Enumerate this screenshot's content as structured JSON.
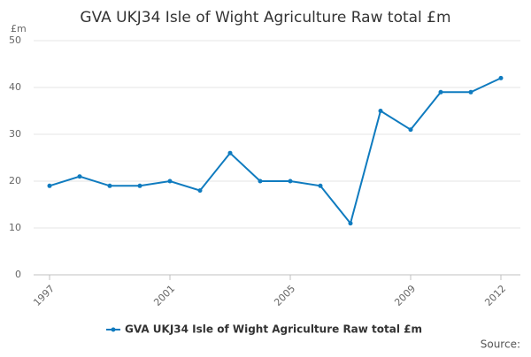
{
  "chart_data": {
    "type": "line",
    "title": "GVA UKJ34 Isle of Wight Agriculture Raw total £m",
    "y_label": "£m",
    "source": "Source:",
    "x": [
      1997,
      1998,
      1999,
      2000,
      2001,
      2002,
      2003,
      2004,
      2005,
      2006,
      2007,
      2008,
      2009,
      2010,
      2011,
      2012
    ],
    "series": [
      {
        "name": "GVA UKJ34 Isle of Wight Agriculture Raw total £m",
        "color": "#0f7bbf",
        "values": [
          19,
          21,
          19,
          19,
          20,
          18,
          26,
          20,
          20,
          19,
          11,
          35,
          31,
          39,
          39,
          42
        ]
      }
    ],
    "xlim": [
      1997,
      2012
    ],
    "xticks": [
      1997,
      2001,
      2005,
      2009,
      2012
    ],
    "ylim": [
      0,
      50
    ],
    "yticks": [
      0,
      10,
      20,
      30,
      40,
      50
    ],
    "grid": true,
    "legend": "bottom"
  }
}
